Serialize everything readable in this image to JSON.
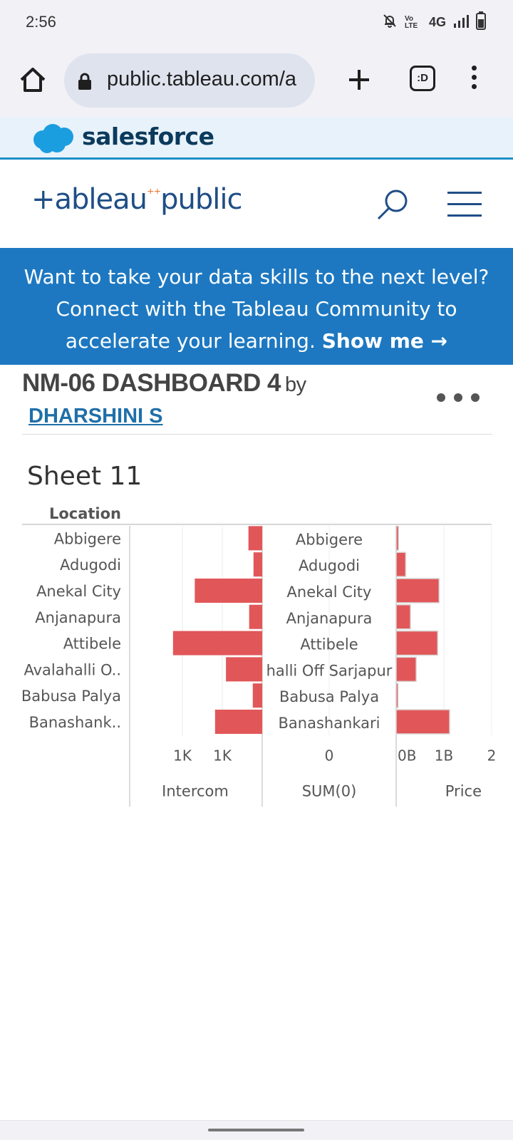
{
  "status_bar": {
    "time": "2:56",
    "network": "4G",
    "volte": "Vo LTE"
  },
  "browser": {
    "url": "public.tableau.com/a",
    "tabs_count": ":D"
  },
  "salesforce": {
    "brand": "salesforce"
  },
  "header": {
    "logo_text": "+ableau",
    "logo_text2": "public"
  },
  "promo": {
    "line1": "Want to take your data skills to the next level?",
    "line2": "Connect with the Tableau Community to",
    "line3": "accelerate your learning.",
    "cta": "Show me →"
  },
  "viz": {
    "title": "NM-06 DASHBOARD 4",
    "by": "by",
    "author": "DHARSHINI S"
  },
  "sheet_title": "Sheet 11",
  "chart_data": {
    "type": "bar",
    "dimension_header": "Location",
    "categories": [
      "Abbigere",
      "Adugodi",
      "Anekal City",
      "Anjanapura",
      "Attibele",
      "Avalahalli O..",
      "Babusa Palya",
      "Banashank.."
    ],
    "middle_labels": [
      "Abbigere",
      "Adugodi",
      "Anekal City",
      "Anjanapura",
      "Attibele",
      "halli Off Sarjapur",
      "Babusa Palya",
      "Banashankari"
    ],
    "series": [
      {
        "name": "Intercom",
        "values": [
          0.19,
          0.12,
          0.93,
          0.18,
          1.23,
          0.5,
          0.13,
          0.65
        ],
        "ticks": [
          "1K",
          "1K"
        ],
        "tick_values": [
          1.1,
          0.55
        ],
        "xlim": [
          0,
          1.7
        ],
        "direction": "reversed"
      },
      {
        "name": "SUM(0)",
        "values": [
          0,
          0,
          0,
          0,
          0,
          0,
          0,
          0
        ],
        "ticks": [
          "0"
        ]
      },
      {
        "name": "Price",
        "values": [
          0.05,
          0.2,
          0.9,
          0.3,
          0.87,
          0.42,
          0.04,
          1.12
        ],
        "ticks": [
          "0B",
          "1B",
          "2"
        ],
        "tick_values": [
          0,
          1,
          2
        ],
        "xlim": [
          0,
          2
        ]
      }
    ],
    "bar_color": "#e15759",
    "grid": true
  }
}
